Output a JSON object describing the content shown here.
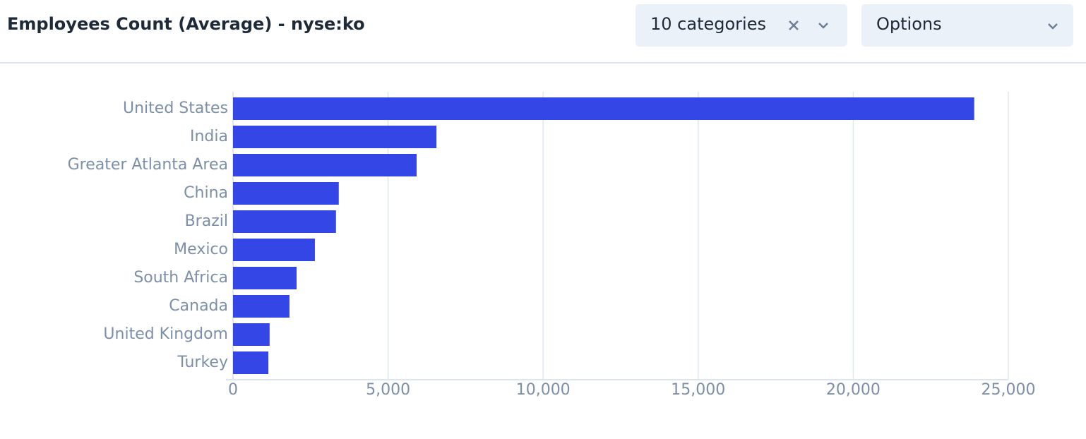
{
  "header": {
    "category_filter": "10 categories",
    "options": "Options"
  },
  "chart_data": {
    "type": "bar",
    "orientation": "horizontal",
    "title": "Employees Count (Average) - nyse:ko",
    "categories": [
      "United States",
      "India",
      "Greater Atlanta Area",
      "China",
      "Brazil",
      "Mexico",
      "South Africa",
      "Canada",
      "United Kingdom",
      "Turkey"
    ],
    "values": [
      23900,
      6560,
      5920,
      3410,
      3320,
      2640,
      2050,
      1820,
      1180,
      1140
    ],
    "color": "#3546e6",
    "xlim": [
      0,
      25000
    ],
    "xticks": [
      0,
      {
        "value": 5000,
        "label": "5,000"
      },
      {
        "value": 10000,
        "label": "10,000"
      },
      {
        "value": 15000,
        "label": "15,000"
      },
      {
        "value": 20000,
        "label": "20,000"
      },
      {
        "value": 25000,
        "label": "25,000"
      }
    ],
    "grid": true
  }
}
